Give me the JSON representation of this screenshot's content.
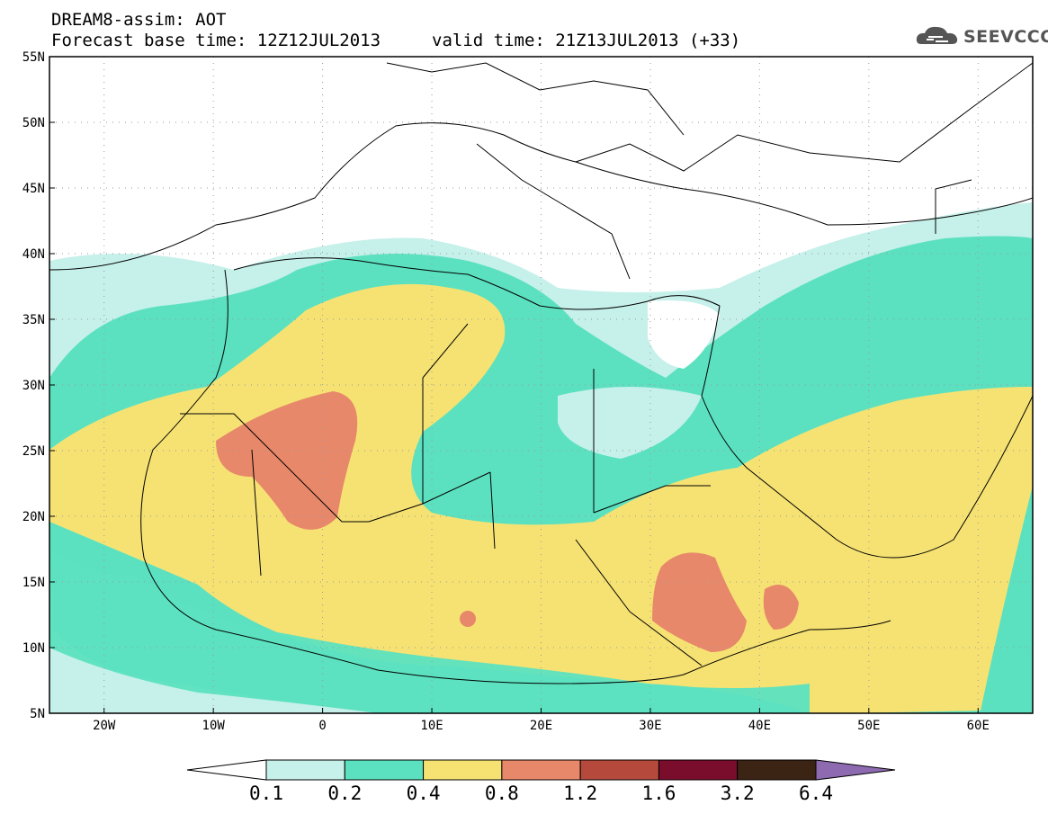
{
  "title": {
    "line1": "DREAM8-assim: AOT",
    "line2": "Forecast base time: 12Z12JUL2013",
    "line3": "valid time: 21Z13JUL2013 (+33)"
  },
  "logo": {
    "text": "SEEVCCC",
    "icon": "cloud-icon"
  },
  "map": {
    "lat_labels": [
      "55N",
      "50N",
      "45N",
      "40N",
      "35N",
      "30N",
      "25N",
      "20N",
      "15N",
      "10N",
      "5N"
    ],
    "lon_labels": [
      "20W",
      "10W",
      "0",
      "10E",
      "20E",
      "30E",
      "40E",
      "50E",
      "60E"
    ],
    "lat_range": [
      5,
      55
    ],
    "lon_range": [
      -25,
      65
    ],
    "grid": "dotted"
  },
  "colorbar": {
    "labels": [
      "0.1",
      "0.2",
      "0.4",
      "0.8",
      "1.2",
      "1.6",
      "3.2",
      "6.4"
    ],
    "colors": [
      "#ffffff",
      "#c6f0ea",
      "#5ce1c0",
      "#f6e273",
      "#e8886a",
      "#b54a3c",
      "#7a0c2c",
      "#3c2414",
      "#8e6bb0"
    ]
  }
}
